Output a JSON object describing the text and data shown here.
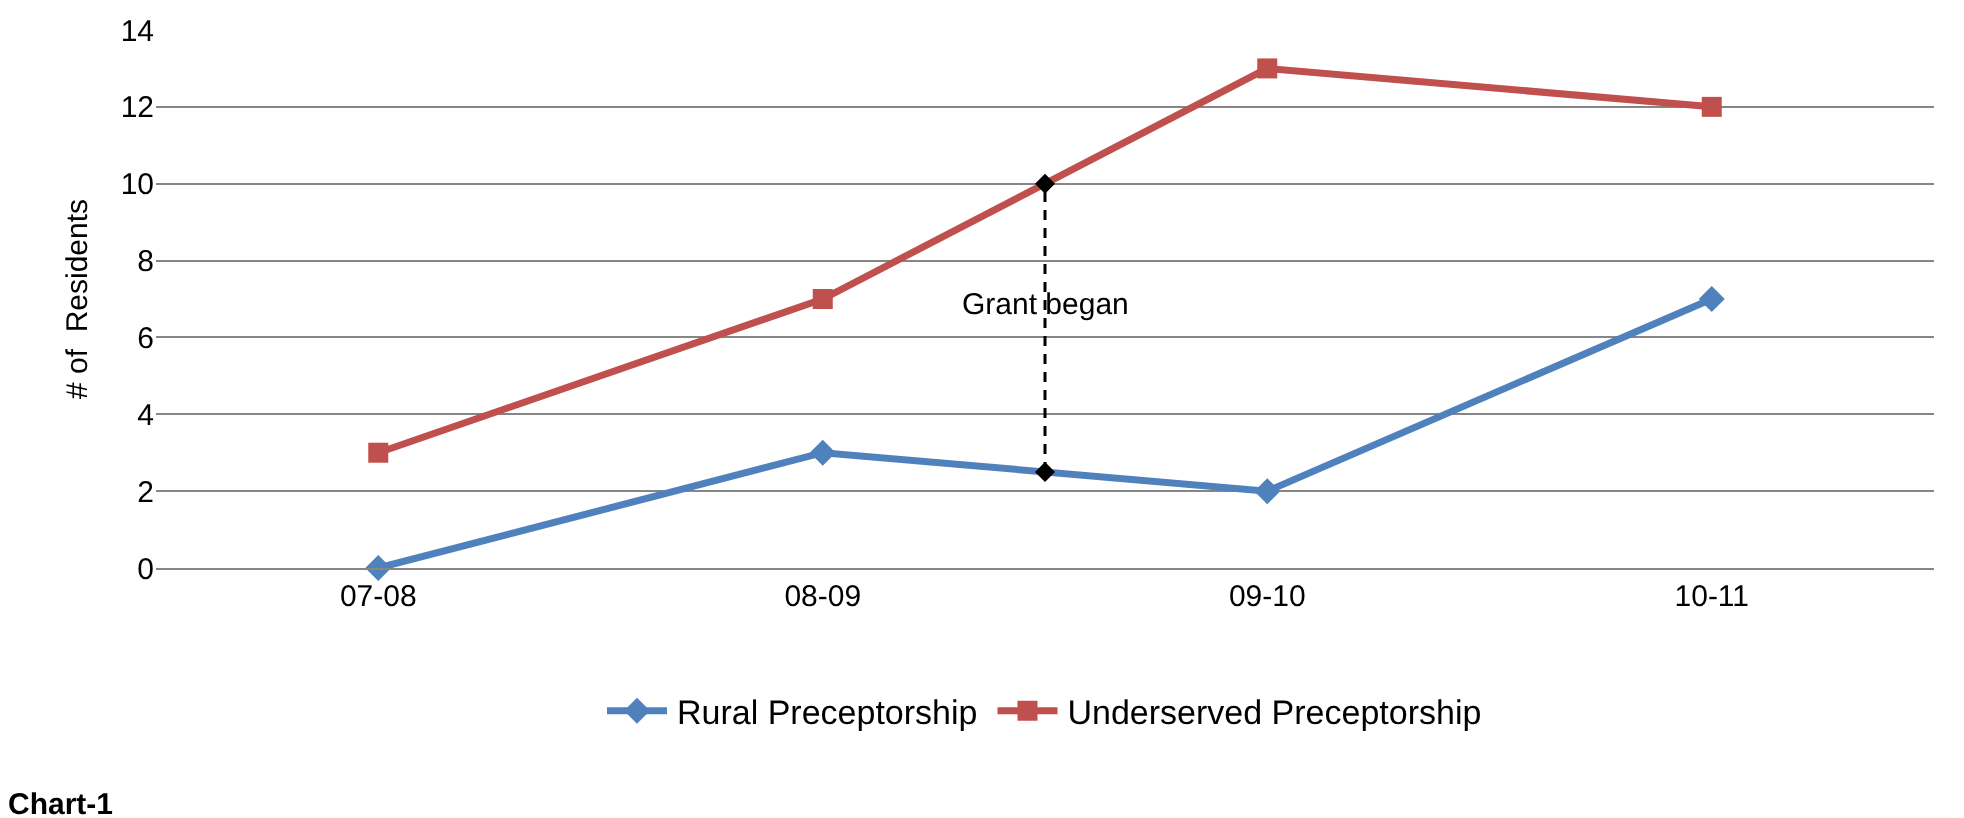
{
  "chart_data": {
    "type": "line",
    "ylabel": "# of  Residents",
    "categories": [
      "07-08",
      "08-09",
      "09-10",
      "10-11"
    ],
    "series": [
      {
        "name": "Rural Preceptorship",
        "color": "#4f81bd",
        "values": [
          0,
          3,
          2,
          7
        ],
        "marker": "diamond"
      },
      {
        "name": "Underserved Preceptorship",
        "color": "#c0504d",
        "values": [
          3,
          7,
          13,
          12
        ],
        "marker": "square"
      }
    ],
    "ylim": [
      0,
      14
    ],
    "yticks": [
      0,
      2,
      4,
      6,
      8,
      10,
      12,
      14
    ],
    "grid": "y",
    "legend": "bottom",
    "annotations": [
      "Grant began",
      "Chart-1"
    ]
  }
}
